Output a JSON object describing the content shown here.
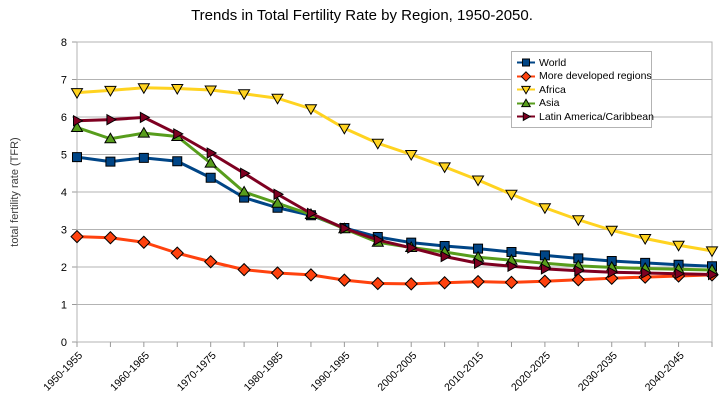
{
  "title": "Trends in Total Fertility Rate by Region, 1950-2050.",
  "y_axis_title": "total fertility rate (TFR)",
  "colors": {
    "background": "#ffffff",
    "grid": "#b3b3b3",
    "axis": "#b3b3b3",
    "tick": "#999999",
    "text": "#000000",
    "marker_stroke": "#000000"
  },
  "chart_data": {
    "type": "line",
    "title": "Trends in Total Fertility Rate by Region, 1950-2050.",
    "xlabel": "",
    "ylabel": "total fertility rate (TFR)",
    "ylim": [
      0,
      8
    ],
    "y_ticks": [
      0,
      1,
      2,
      3,
      4,
      5,
      6,
      7,
      8
    ],
    "grid": "horizontal",
    "legend_position": "top-right",
    "categories": [
      "1950-1955",
      "1955-1960",
      "1960-1965",
      "1965-1970",
      "1970-1975",
      "1975-1980",
      "1980-1985",
      "1985-1990",
      "1990-1995",
      "1995-2000",
      "2000-2005",
      "2005-2010",
      "2010-2015",
      "2015-2020",
      "2020-2025",
      "2025-2030",
      "2030-2035",
      "2035-2040",
      "2040-2045",
      "2045-2050"
    ],
    "x_tick_labels": [
      "1950-1955",
      "1960-1965",
      "1970-1975",
      "1980-1985",
      "1990-1995",
      "2000-2005",
      "2010-2015",
      "2020-2025",
      "2030-2035",
      "2040-2045"
    ],
    "x_label_every": 2,
    "series": [
      {
        "name": "World",
        "color": "#004586",
        "marker": "square",
        "values": [
          4.93,
          4.81,
          4.91,
          4.82,
          4.38,
          3.85,
          3.58,
          3.38,
          3.04,
          2.8,
          2.65,
          2.56,
          2.49,
          2.4,
          2.31,
          2.23,
          2.16,
          2.11,
          2.06,
          2.02
        ]
      },
      {
        "name": "More developed regions",
        "color": "#ff420e",
        "marker": "diamond",
        "values": [
          2.81,
          2.78,
          2.66,
          2.37,
          2.14,
          1.93,
          1.84,
          1.79,
          1.65,
          1.56,
          1.55,
          1.58,
          1.61,
          1.59,
          1.62,
          1.66,
          1.7,
          1.73,
          1.76,
          1.79
        ]
      },
      {
        "name": "Africa",
        "color": "#ffd320",
        "marker": "triangle-down",
        "values": [
          6.65,
          6.71,
          6.78,
          6.76,
          6.72,
          6.62,
          6.5,
          6.22,
          5.7,
          5.3,
          5.0,
          4.67,
          4.32,
          3.94,
          3.58,
          3.26,
          2.98,
          2.76,
          2.58,
          2.43
        ]
      },
      {
        "name": "Asia",
        "color": "#579d1c",
        "marker": "triangle-up",
        "values": [
          5.72,
          5.42,
          5.57,
          5.48,
          4.77,
          4.0,
          3.7,
          3.4,
          3.02,
          2.66,
          2.52,
          2.4,
          2.26,
          2.18,
          2.1,
          2.03,
          1.99,
          1.96,
          1.94,
          1.92
        ]
      },
      {
        "name": "Latin America/Caribbean",
        "color": "#7e0021",
        "marker": "triangle-right",
        "values": [
          5.9,
          5.93,
          5.99,
          5.55,
          5.04,
          4.5,
          3.94,
          3.43,
          3.03,
          2.72,
          2.51,
          2.28,
          2.1,
          2.02,
          1.95,
          1.9,
          1.86,
          1.84,
          1.82,
          1.8
        ]
      }
    ]
  }
}
